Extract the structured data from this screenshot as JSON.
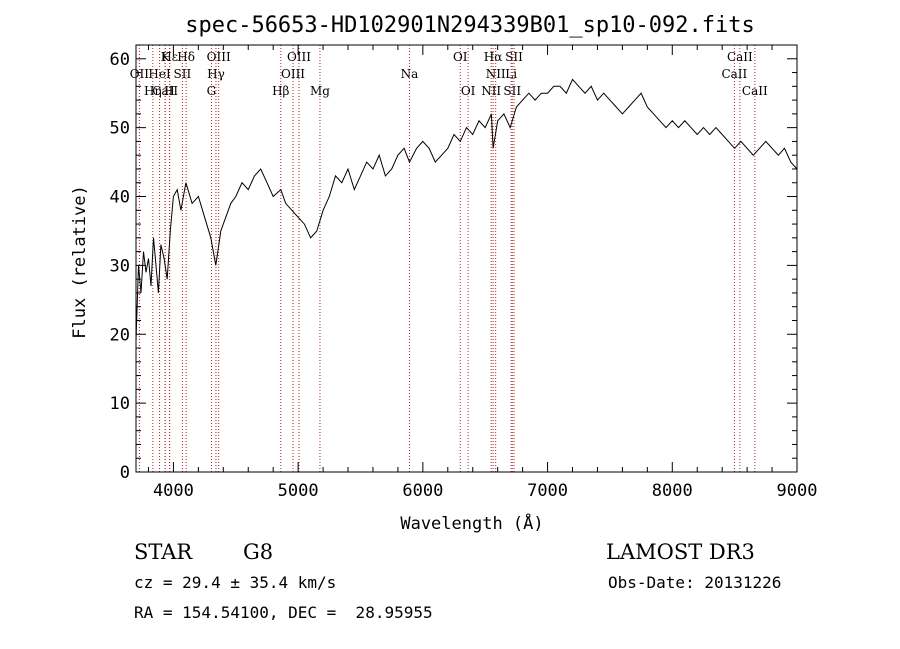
{
  "chart_data": {
    "type": "line",
    "title": "spec-56653-HD102901N294339B01_sp10-092.fits",
    "xlabel": "Wavelength (Å)",
    "ylabel": "Flux (relative)",
    "xlim": [
      3700,
      9000
    ],
    "ylim": [
      0,
      62
    ],
    "xticks": [
      4000,
      5000,
      6000,
      7000,
      8000,
      9000
    ],
    "yticks": [
      0,
      10,
      20,
      30,
      40,
      50,
      60
    ],
    "grid": false,
    "line_color": "#000000",
    "marker_color": "#b22222",
    "series": [
      {
        "x": [
          3700,
          3720,
          3740,
          3760,
          3780,
          3800,
          3820,
          3840,
          3860,
          3880,
          3900,
          3925,
          3950,
          3975,
          4000,
          4030,
          4060,
          4100,
          4150,
          4200,
          4250,
          4300,
          4340,
          4380,
          4420,
          4460,
          4500,
          4550,
          4600,
          4650,
          4700,
          4750,
          4800,
          4861,
          4900,
          4950,
          5000,
          5050,
          5100,
          5150,
          5200,
          5250,
          5300,
          5350,
          5400,
          5450,
          5500,
          5550,
          5600,
          5650,
          5700,
          5750,
          5800,
          5850,
          5893,
          5950,
          6000,
          6050,
          6100,
          6150,
          6200,
          6250,
          6300,
          6350,
          6400,
          6450,
          6500,
          6550,
          6563,
          6600,
          6650,
          6700,
          6750,
          6800,
          6850,
          6900,
          6950,
          7000,
          7050,
          7100,
          7150,
          7200,
          7250,
          7300,
          7350,
          7400,
          7450,
          7500,
          7550,
          7600,
          7650,
          7700,
          7750,
          7800,
          7850,
          7900,
          7950,
          8000,
          8050,
          8100,
          8150,
          8200,
          8250,
          8300,
          8350,
          8400,
          8450,
          8500,
          8550,
          8600,
          8650,
          8700,
          8750,
          8800,
          8850,
          8900,
          8950,
          9000
        ],
        "y": [
          19,
          30,
          26,
          32,
          29,
          31,
          27,
          34,
          30,
          26,
          33,
          31,
          28,
          35,
          40,
          41,
          38,
          42,
          39,
          40,
          37,
          34,
          30,
          35,
          37,
          39,
          40,
          42,
          41,
          43,
          44,
          42,
          40,
          41,
          39,
          38,
          37,
          36,
          34,
          35,
          38,
          40,
          43,
          42,
          44,
          41,
          43,
          45,
          44,
          46,
          43,
          44,
          46,
          47,
          45,
          47,
          48,
          47,
          45,
          46,
          47,
          49,
          48,
          50,
          49,
          51,
          50,
          52,
          47,
          51,
          52,
          50,
          53,
          54,
          55,
          54,
          55,
          55,
          56,
          56,
          55,
          57,
          56,
          55,
          56,
          54,
          55,
          54,
          53,
          52,
          53,
          54,
          55,
          53,
          52,
          51,
          50,
          51,
          50,
          51,
          50,
          49,
          50,
          49,
          50,
          49,
          48,
          47,
          48,
          47,
          46,
          47,
          48,
          47,
          46,
          47,
          45,
          44
        ]
      }
    ],
    "line_markers": [
      {
        "label": "Hε",
        "wavelength": 3970,
        "row": 1
      },
      {
        "label": "OII",
        "wavelength": 3727,
        "row": 2
      },
      {
        "label": "CaII",
        "wavelength": 3934,
        "row": 3
      },
      {
        "label": "K",
        "wavelength": 3934,
        "row": 1
      },
      {
        "label": "HeI",
        "wavelength": 3889,
        "row": 2
      },
      {
        "label": "Hη",
        "wavelength": 3835,
        "row": 3
      },
      {
        "label": "H",
        "wavelength": 3969,
        "row": 3
      },
      {
        "label": "SII",
        "wavelength": 4072,
        "row": 2
      },
      {
        "label": "Hδ",
        "wavelength": 4102,
        "row": 1
      },
      {
        "label": "OIII",
        "wavelength": 4363,
        "row": 1
      },
      {
        "label": "Hγ",
        "wavelength": 4341,
        "row": 2
      },
      {
        "label": "G",
        "wavelength": 4305,
        "row": 3
      },
      {
        "label": "OIII",
        "wavelength": 5007,
        "row": 1
      },
      {
        "label": "OIII",
        "wavelength": 4959,
        "row": 2
      },
      {
        "label": "Hβ",
        "wavelength": 4861,
        "row": 3
      },
      {
        "label": "Mg",
        "wavelength": 5175,
        "row": 3
      },
      {
        "label": "Na",
        "wavelength": 5893,
        "row": 2
      },
      {
        "label": "OI",
        "wavelength": 6300,
        "row": 1
      },
      {
        "label": "OI",
        "wavelength": 6363,
        "row": 3
      },
      {
        "label": "Hα",
        "wavelength": 6563,
        "row": 1
      },
      {
        "label": "SII",
        "wavelength": 6731,
        "row": 1
      },
      {
        "label": "NII",
        "wavelength": 6584,
        "row": 2
      },
      {
        "label": "Li",
        "wavelength": 6708,
        "row": 2
      },
      {
        "label": "NII",
        "wavelength": 6548,
        "row": 3
      },
      {
        "label": "SII",
        "wavelength": 6717,
        "row": 3
      },
      {
        "label": "CaII",
        "wavelength": 8542,
        "row": 1
      },
      {
        "label": "CaII",
        "wavelength": 8498,
        "row": 2
      },
      {
        "label": "CaII",
        "wavelength": 8662,
        "row": 3
      }
    ]
  },
  "info": {
    "object_class": "STAR",
    "subclass": "G8",
    "survey": "LAMOST DR3",
    "redshift_line": "cz = 29.4 ± 35.4 km/s",
    "obs_date_line": "Obs-Date: 20131226",
    "coords_line": "RA = 154.54100, DEC =  28.95955"
  }
}
